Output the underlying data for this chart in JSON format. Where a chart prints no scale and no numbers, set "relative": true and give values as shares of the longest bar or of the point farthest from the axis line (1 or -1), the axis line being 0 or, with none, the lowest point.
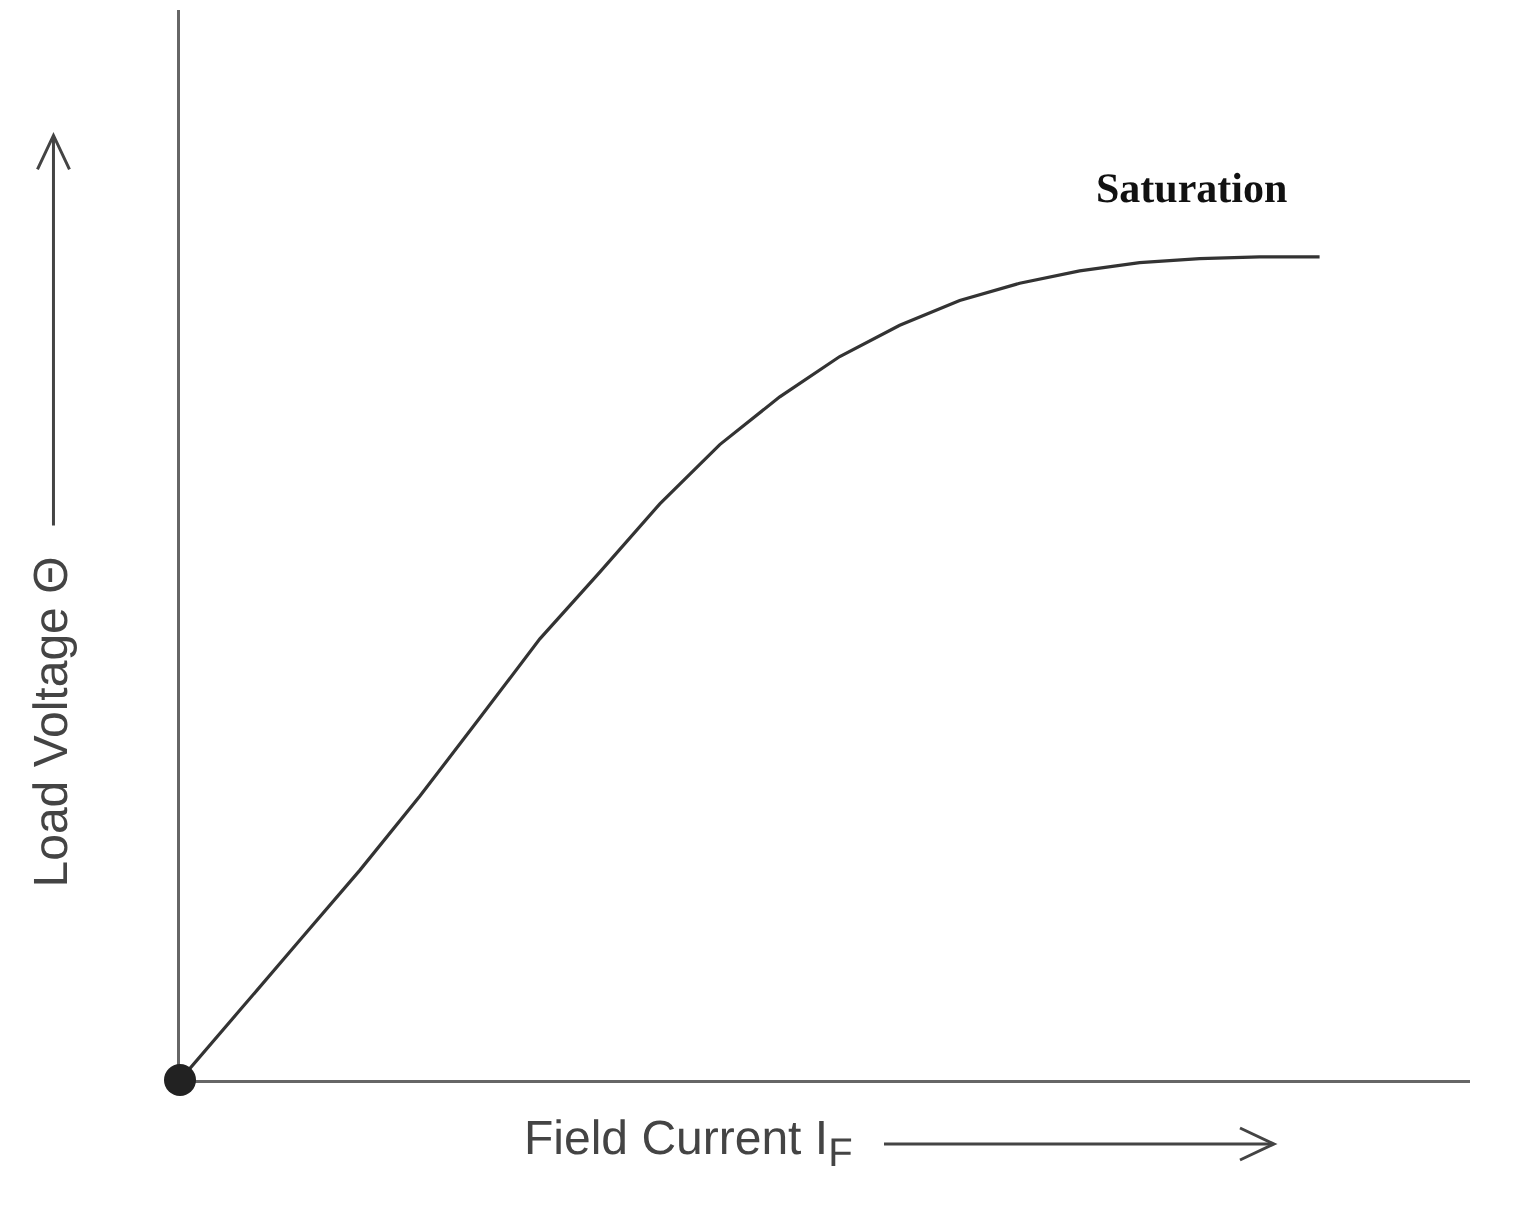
{
  "chart_data": {
    "type": "line",
    "relative": true,
    "xlabel": "Field Current I$_{F}$",
    "ylabel": "Load Voltage  Θ",
    "annotations": [
      "Saturation"
    ],
    "color": "#333333",
    "marker": "none",
    "line_style": "solid",
    "categories": [
      null,
      null,
      null,
      null,
      null,
      null,
      null,
      null,
      null,
      null,
      null,
      null,
      null,
      null,
      null,
      null,
      null,
      null,
      null,
      null
    ],
    "values": [
      0,
      0.085,
      0.17,
      0.255,
      0.345,
      0.44,
      0.536,
      0.617,
      0.7,
      0.772,
      0.83,
      0.879,
      0.917,
      0.947,
      0.968,
      0.983,
      0.993,
      0.998,
      1,
      1
    ]
  }
}
